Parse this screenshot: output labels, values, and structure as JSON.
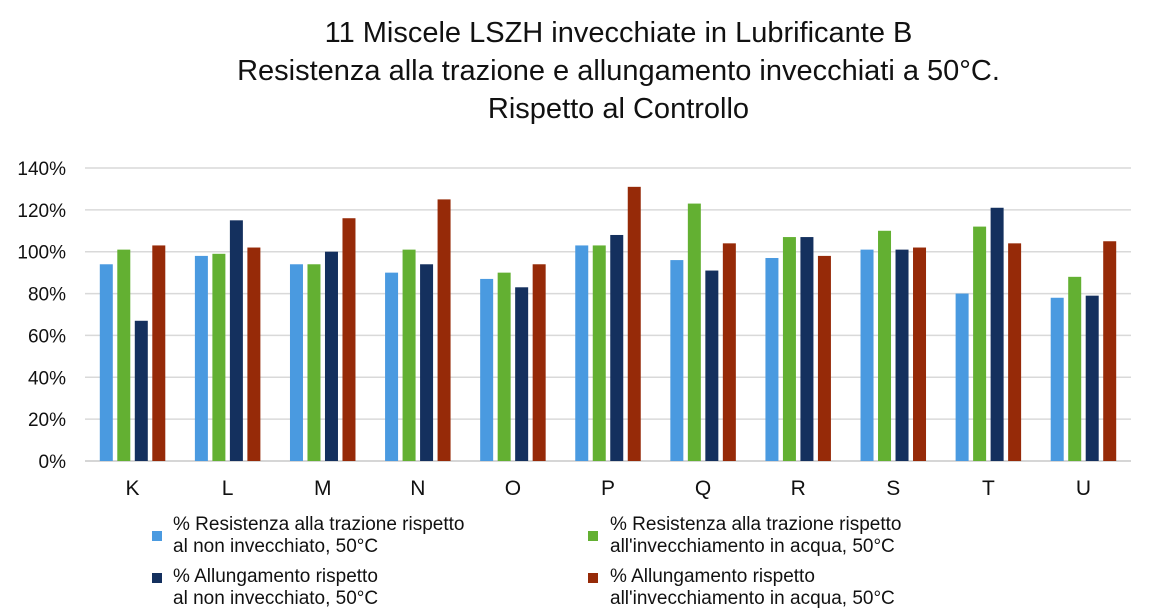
{
  "chart_data": {
    "type": "bar",
    "title_lines": [
      "11 Miscele LSZH invecchiate in Lubrificante B",
      "Resistenza alla trazione e allungamento invecchiati a 50°C.",
      "Rispetto al Controllo"
    ],
    "categories": [
      "K",
      "L",
      "M",
      "N",
      "O",
      "P",
      "Q",
      "R",
      "S",
      "T",
      "U"
    ],
    "series": [
      {
        "name_lines": [
          "% Resistenza alla trazione rispetto",
          "al non invecchiato, 50°C"
        ],
        "color": "#4a9ae0",
        "values": [
          94,
          98,
          94,
          90,
          87,
          103,
          96,
          97,
          101,
          80,
          78
        ]
      },
      {
        "name_lines": [
          "% Resistenza alla trazione rispetto",
          "all'invecchiamento in acqua, 50°C"
        ],
        "color": "#63b032",
        "values": [
          101,
          99,
          94,
          101,
          90,
          103,
          123,
          107,
          110,
          112,
          88
        ]
      },
      {
        "name_lines": [
          "% Allungamento rispetto",
          "al non invecchiato, 50°C"
        ],
        "color": "#14305e",
        "values": [
          67,
          115,
          100,
          94,
          83,
          108,
          91,
          107,
          101,
          121,
          79
        ]
      },
      {
        "name_lines": [
          "% Allungamento rispetto",
          "all'invecchiamento in acqua, 50°C"
        ],
        "color": "#962a08",
        "values": [
          103,
          102,
          116,
          125,
          94,
          131,
          104,
          98,
          102,
          104,
          105
        ]
      }
    ],
    "y_ticks": [
      "0%",
      "20%",
      "40%",
      "60%",
      "80%",
      "100%",
      "120%",
      "140%"
    ],
    "ylim": [
      0,
      140
    ],
    "grid": true,
    "legend_position": "bottom"
  }
}
